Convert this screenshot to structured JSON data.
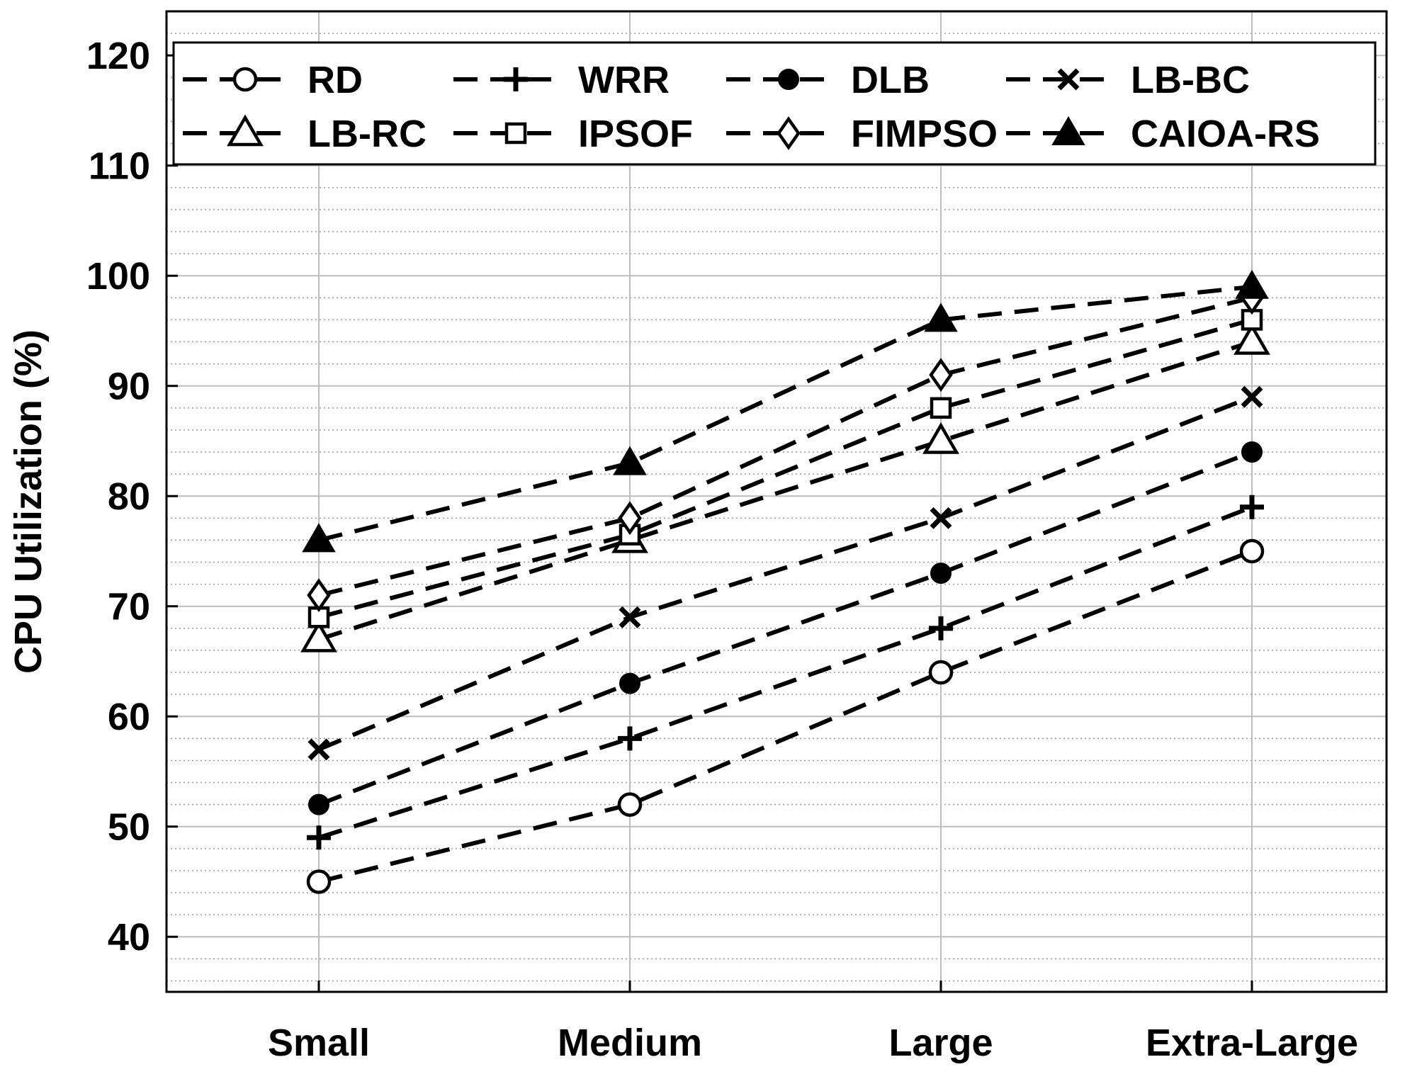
{
  "chart_data": {
    "type": "line",
    "title": "",
    "xlabel": "",
    "ylabel": "CPU Utilization (%)",
    "categories": [
      "Small",
      "Medium",
      "Large",
      "Extra-Large"
    ],
    "ylim": [
      35,
      124
    ],
    "yticks": [
      40,
      50,
      60,
      70,
      80,
      90,
      100,
      110,
      120
    ],
    "grid": true,
    "minor_grid": true,
    "legend_position": "top",
    "series": [
      {
        "name": "RD",
        "marker": "circle-open",
        "values": [
          45,
          52,
          64,
          75
        ]
      },
      {
        "name": "WRR",
        "marker": "plus",
        "values": [
          49,
          58,
          68,
          79
        ]
      },
      {
        "name": "DLB",
        "marker": "circle-filled",
        "values": [
          52,
          63,
          73,
          84
        ]
      },
      {
        "name": "LB-BC",
        "marker": "x",
        "values": [
          57,
          69,
          78,
          89
        ]
      },
      {
        "name": "LB-RC",
        "marker": "triangle-open",
        "values": [
          67,
          76,
          85,
          94
        ]
      },
      {
        "name": "IPSOF",
        "marker": "square-open",
        "values": [
          69,
          76.5,
          88,
          96
        ]
      },
      {
        "name": "FIMPSO",
        "marker": "diamond-open",
        "values": [
          71,
          78,
          91,
          98
        ]
      },
      {
        "name": "CAIOA-RS",
        "marker": "triangle-filled",
        "values": [
          76,
          83,
          96,
          99
        ]
      }
    ]
  }
}
